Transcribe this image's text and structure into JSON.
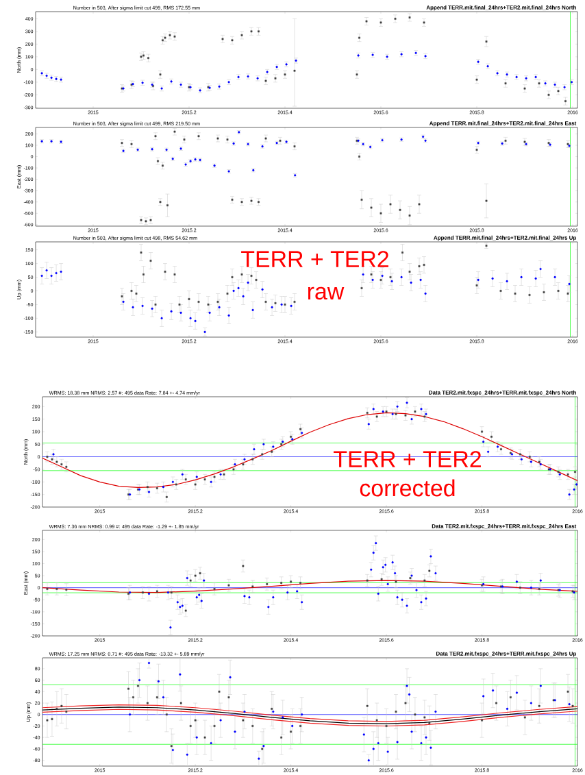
{
  "chart_data": [
    {
      "type": "scatter",
      "title": "Append TERR.mit.final_24hrs+TER2.mit.final_24hrs North",
      "subtitle": "Number in 503, After sigma limit cut 499, RMS 172.55 mm",
      "ylabel": "North (mm)",
      "xlim": [
        2014.88,
        2016.01
      ],
      "xticks": [
        2015,
        2015.2,
        2015.4,
        2015.6,
        2015.8,
        2016
      ],
      "ylim": [
        -306,
        456
      ],
      "yticks": [
        -300,
        -200,
        -100,
        0,
        100,
        200,
        300,
        400
      ],
      "ref_lines": [
        {
          "axis": "x",
          "value": 2015.995,
          "color": "#00ff00"
        }
      ],
      "series": [
        {
          "color": "#404040",
          "marker": "square",
          "x": [
            2015.06,
            2015.08,
            2015.1,
            2015.105,
            2015.115,
            2015.125,
            2015.14,
            2015.145,
            2015.15,
            2015.16,
            2015.17,
            2015.2,
            2015.24,
            2015.27,
            2015.29,
            2015.31,
            2015.33,
            2015.345,
            2015.36,
            2015.38,
            2015.4,
            2015.42,
            2015.55,
            2015.555,
            2015.57,
            2015.6,
            2015.63,
            2015.66,
            2015.69,
            2015.8,
            2015.82,
            2015.86,
            2015.9,
            2015.93,
            2015.95,
            2015.97,
            2015.985
          ],
          "values": [
            -150,
            -120,
            100,
            110,
            90,
            -130,
            -40,
            230,
            250,
            270,
            260,
            -140,
            -140,
            240,
            230,
            270,
            300,
            300,
            -90,
            -70,
            -40,
            -10,
            -40,
            250,
            380,
            370,
            400,
            410,
            370,
            -80,
            220,
            -110,
            -150,
            -110,
            -200,
            -170,
            -250
          ],
          "errors": [
            30,
            30,
            30,
            30,
            30,
            30,
            30,
            30,
            30,
            30,
            30,
            30,
            30,
            30,
            30,
            30,
            30,
            30,
            30,
            30,
            30,
            [
              -290,
              400
            ],
            30,
            30,
            30,
            30,
            30,
            30,
            30,
            30,
            40,
            30,
            30,
            30,
            30,
            30,
            30
          ]
        },
        {
          "color": "#0000ff",
          "marker": "circle",
          "x": [
            2014.893,
            2014.903,
            2014.913,
            2014.923,
            2014.933,
            2015.063,
            2015.083,
            2015.103,
            2015.123,
            2015.143,
            2015.163,
            2015.183,
            2015.203,
            2015.223,
            2015.243,
            2015.263,
            2015.283,
            2015.303,
            2015.323,
            2015.343,
            2015.363,
            2015.383,
            2015.403,
            2015.423,
            2015.553,
            2015.583,
            2015.613,
            2015.643,
            2015.673,
            2015.693,
            2015.803,
            2015.823,
            2015.843,
            2015.863,
            2015.883,
            2015.903,
            2015.923,
            2015.943,
            2015.963,
            2015.983,
            2015.998
          ],
          "values": [
            -30,
            -50,
            -65,
            -75,
            -80,
            -150,
            -115,
            -105,
            -120,
            -150,
            -95,
            -120,
            -140,
            -165,
            -145,
            -135,
            -100,
            -60,
            -55,
            -70,
            -20,
            20,
            40,
            70,
            110,
            115,
            100,
            120,
            130,
            105,
            60,
            25,
            -30,
            -40,
            -60,
            -70,
            -60,
            -110,
            -120,
            -140,
            -100
          ],
          "errors": [
            20,
            20,
            20,
            20,
            20,
            20,
            20,
            20,
            20,
            20,
            20,
            20,
            20,
            20,
            20,
            20,
            20,
            20,
            20,
            20,
            20,
            20,
            20,
            20,
            20,
            20,
            20,
            20,
            20,
            20,
            20,
            20,
            20,
            20,
            20,
            20,
            20,
            20,
            20,
            20,
            20
          ]
        }
      ]
    },
    {
      "type": "scatter",
      "title": "Append TERR.mit.final_24hrs+TER2.mit.final_24hrs East",
      "subtitle": "Number in 503, After sigma limit cut 499, RMS 219.50 mm",
      "ylabel": "East (mm)",
      "xlim": [
        2014.88,
        2016.01
      ],
      "xticks": [
        2015,
        2015.2,
        2015.4,
        2015.6,
        2015.8,
        2016
      ],
      "ylim": [
        -613,
        257
      ],
      "yticks": [
        -600,
        -500,
        -400,
        -300,
        -200,
        -100,
        0,
        100,
        200
      ],
      "ref_lines": [
        {
          "axis": "x",
          "value": 2015.995,
          "color": "#00ff00"
        }
      ],
      "series": [
        {
          "color": "#404040",
          "marker": "square",
          "x": [
            2015.06,
            2015.08,
            2015.1,
            2015.11,
            2015.12,
            2015.13,
            2015.135,
            2015.14,
            2015.145,
            2015.155,
            2015.17,
            2015.19,
            2015.22,
            2015.26,
            2015.28,
            2015.29,
            2015.31,
            2015.33,
            2015.345,
            2015.36,
            2015.39,
            2015.42,
            2015.55,
            2015.555,
            2015.56,
            2015.58,
            2015.6,
            2015.62,
            2015.64,
            2015.66,
            2015.68,
            2015.8,
            2015.82,
            2015.86,
            2015.9,
            2015.95,
            2015.99
          ],
          "values": [
            120,
            110,
            -560,
            -570,
            -560,
            180,
            -40,
            -400,
            -80,
            -430,
            220,
            150,
            180,
            160,
            150,
            -380,
            -400,
            -390,
            -400,
            160,
            140,
            90,
            140,
            0,
            -380,
            -450,
            -500,
            -420,
            -470,
            -520,
            -420,
            60,
            -390,
            140,
            130,
            120,
            110
          ],
          "errors": [
            30,
            30,
            30,
            30,
            30,
            30,
            30,
            30,
            30,
            100,
            30,
            30,
            30,
            30,
            30,
            30,
            30,
            30,
            30,
            30,
            30,
            30,
            30,
            30,
            80,
            80,
            80,
            80,
            80,
            80,
            80,
            30,
            150,
            30,
            30,
            30,
            30
          ]
        },
        {
          "color": "#0000ff",
          "marker": "circle",
          "x": [
            2014.893,
            2014.913,
            2014.933,
            2015.063,
            2015.093,
            2015.123,
            2015.153,
            2015.166,
            2015.183,
            2015.193,
            2015.203,
            2015.213,
            2015.223,
            2015.253,
            2015.283,
            2015.293,
            2015.304,
            2015.323,
            2015.334,
            2015.353,
            2015.383,
            2015.403,
            2015.421,
            2015.553,
            2015.563,
            2015.578,
            2015.603,
            2015.643,
            2015.688,
            2015.693,
            2015.803,
            2015.853,
            2015.903,
            2015.953,
            2015.993
          ],
          "values": [
            135,
            135,
            130,
            50,
            60,
            65,
            60,
            -20,
            70,
            -70,
            -40,
            -25,
            -30,
            -80,
            -130,
            115,
            215,
            110,
            -120,
            90,
            120,
            130,
            -165,
            140,
            110,
            85,
            145,
            150,
            175,
            140,
            120,
            115,
            110,
            105,
            95
          ],
          "errors": [
            15,
            15,
            15,
            15,
            15,
            15,
            15,
            15,
            15,
            15,
            15,
            15,
            15,
            15,
            15,
            15,
            15,
            15,
            15,
            15,
            15,
            15,
            15,
            15,
            15,
            15,
            15,
            15,
            15,
            15,
            15,
            15,
            15,
            15,
            15
          ]
        }
      ]
    },
    {
      "type": "scatter",
      "title": "Append TERR.mit.final_24hrs+TER2.mit.final_24hrs Up",
      "subtitle": "Number in 503, After sigma limit cut 498, RMS 54.62 mm",
      "ylabel": "Up (mm)",
      "xlim": [
        2014.88,
        2016.01
      ],
      "xticks": [
        2015,
        2015.2,
        2015.4,
        2015.6,
        2015.8,
        2016
      ],
      "ylim": [
        -169,
        179
      ],
      "yticks": [
        -150,
        -100,
        -50,
        0,
        50,
        100,
        150
      ],
      "ref_lines": [
        {
          "axis": "x",
          "value": 2015.995,
          "color": "#00ff00"
        }
      ],
      "annotations": [
        "TERR + TER2",
        "raw"
      ],
      "series": [
        {
          "color": "#404040",
          "marker": "square",
          "x": [
            2015.06,
            2015.08,
            2015.09,
            2015.1,
            2015.105,
            2015.12,
            2015.13,
            2015.15,
            2015.17,
            2015.18,
            2015.2,
            2015.22,
            2015.24,
            2015.26,
            2015.28,
            2015.29,
            2015.31,
            2015.33,
            2015.34,
            2015.36,
            2015.38,
            2015.4,
            2015.42,
            2015.56,
            2015.58,
            2015.6,
            2015.62,
            2015.645,
            2015.66,
            2015.68,
            2015.69,
            2015.8,
            2015.82,
            2015.85,
            2015.88,
            2015.91,
            2015.94,
            2015.97,
            2015.99
          ],
          "values": [
            -20,
            0,
            -10,
            140,
            60,
            110,
            -50,
            70,
            60,
            -50,
            -30,
            -40,
            -50,
            -40,
            -10,
            50,
            60,
            55,
            40,
            -40,
            -45,
            -50,
            -40,
            10,
            60,
            40,
            50,
            140,
            70,
            90,
            95,
            20,
            165,
            0,
            -10,
            -15,
            -5,
            0,
            -10
          ],
          "errors": [
            30,
            30,
            30,
            30,
            30,
            30,
            30,
            30,
            30,
            30,
            30,
            30,
            30,
            30,
            30,
            30,
            30,
            30,
            30,
            30,
            30,
            30,
            30,
            30,
            30,
            30,
            30,
            30,
            30,
            30,
            30,
            30,
            10,
            30,
            30,
            30,
            30,
            30,
            30
          ]
        },
        {
          "color": "#0000ff",
          "marker": "circle",
          "x": [
            2014.893,
            2014.903,
            2014.913,
            2014.923,
            2014.933,
            2015.063,
            2015.083,
            2015.103,
            2015.123,
            2015.143,
            2015.163,
            2015.183,
            2015.203,
            2015.213,
            2015.233,
            2015.243,
            2015.263,
            2015.283,
            2015.293,
            2015.303,
            2015.313,
            2015.323,
            2015.333,
            2015.353,
            2015.373,
            2015.393,
            2015.413,
            2015.563,
            2015.583,
            2015.603,
            2015.623,
            2015.643,
            2015.663,
            2015.683,
            2015.693,
            2015.803,
            2015.833,
            2015.863,
            2015.893,
            2015.923,
            2015.933,
            2015.963,
            2015.993
          ],
          "values": [
            55,
            75,
            55,
            65,
            70,
            -40,
            -60,
            -55,
            -65,
            -100,
            -75,
            -80,
            -100,
            -110,
            -150,
            -80,
            -60,
            -90,
            0,
            10,
            -20,
            30,
            -70,
            5,
            -60,
            -50,
            -55,
            60,
            40,
            55,
            35,
            50,
            30,
            40,
            -10,
            40,
            45,
            35,
            50,
            45,
            80,
            50,
            25
          ],
          "errors": [
            30,
            30,
            30,
            30,
            30,
            30,
            30,
            30,
            30,
            30,
            30,
            30,
            30,
            30,
            15,
            30,
            30,
            30,
            30,
            30,
            30,
            30,
            30,
            30,
            30,
            30,
            30,
            30,
            30,
            30,
            30,
            30,
            30,
            30,
            30,
            30,
            30,
            30,
            30,
            30,
            30,
            30,
            30
          ]
        }
      ]
    },
    {
      "type": "scatter",
      "title": "Data TER2.mit.fxspc_24hrs+TERR.mit.fxspc_24hrs North",
      "subtitle": "WRMS: 18.38 mm NRMS: 2.57 #: 495 data Rate: 7.84 +- 4.74 mm/yr",
      "ylabel": "North (mm)",
      "xlim": [
        2014.88,
        2016.0
      ],
      "xticks": [
        2015,
        2015.2,
        2015.4,
        2015.6,
        2015.8,
        2016
      ],
      "ylim": [
        -200,
        239
      ],
      "yticks": [
        -200,
        -150,
        -100,
        -50,
        0,
        50,
        100,
        150,
        200
      ],
      "ref_lines": [
        {
          "axis": "y",
          "value": 55,
          "color": "#00ff00"
        },
        {
          "axis": "y",
          "value": 0,
          "color": "#0000ff"
        },
        {
          "axis": "y",
          "value": -55,
          "color": "#00ff00"
        },
        {
          "axis": "x",
          "value": 2015.995,
          "color": "#00ff00"
        }
      ],
      "annotations": [
        "TERR + TER2",
        "corrected"
      ],
      "series": [
        {
          "color": "#404040",
          "marker": "square",
          "x": [
            2014.89,
            2014.9,
            2014.91,
            2014.92,
            2014.93,
            2015.06,
            2015.08,
            2015.1,
            2015.12,
            2015.14,
            2015.16,
            2015.18,
            2015.2,
            2015.22,
            2015.24,
            2015.26,
            2015.28,
            2015.3,
            2015.32,
            2015.34,
            2015.36,
            2015.38,
            2015.4,
            2015.42,
            2015.56,
            2015.58,
            2015.6,
            2015.62,
            2015.64,
            2015.66,
            2015.68,
            2015.8,
            2015.82,
            2015.84,
            2015.86,
            2015.88,
            2015.9,
            2015.92,
            2015.94,
            2015.96,
            2015.98,
            2015.995
          ],
          "values": [
            0,
            -10,
            -20,
            -30,
            -40,
            -150,
            -130,
            -120,
            -125,
            -160,
            -110,
            -90,
            -110,
            -90,
            -80,
            -70,
            -50,
            -30,
            -10,
            10,
            20,
            50,
            80,
            110,
            175,
            160,
            180,
            170,
            165,
            180,
            160,
            100,
            80,
            30,
            15,
            10,
            0,
            -20,
            -50,
            -60,
            -70,
            -60
          ],
          "errors": [
            20,
            20,
            20,
            20,
            20,
            20,
            20,
            20,
            20,
            20,
            20,
            20,
            20,
            20,
            20,
            20,
            20,
            20,
            20,
            20,
            20,
            20,
            20,
            20,
            20,
            20,
            20,
            20,
            20,
            20,
            20,
            20,
            20,
            20,
            20,
            20,
            20,
            20,
            20,
            20,
            20,
            20
          ]
        },
        {
          "color": "#0000ff",
          "marker": "circle",
          "x": [
            2014.903,
            2015.063,
            2015.083,
            2015.103,
            2015.133,
            2015.153,
            2015.173,
            2015.203,
            2015.233,
            2015.253,
            2015.283,
            2015.303,
            2015.323,
            2015.343,
            2015.363,
            2015.383,
            2015.403,
            2015.423,
            2015.563,
            2015.573,
            2015.593,
            2015.613,
            2015.623,
            2015.643,
            2015.653,
            2015.673,
            2015.683,
            2015.803,
            2015.813,
            2015.833,
            2015.863,
            2015.883,
            2015.903,
            2015.923,
            2015.943,
            2015.963,
            2015.983,
            2015.993,
            2015.998
          ],
          "values": [
            10,
            -150,
            -130,
            -140,
            -120,
            -100,
            -70,
            -80,
            -100,
            -70,
            -30,
            -10,
            30,
            50,
            40,
            60,
            70,
            95,
            130,
            190,
            180,
            170,
            200,
            215,
            150,
            190,
            170,
            60,
            20,
            40,
            10,
            -10,
            -20,
            -30,
            -50,
            -70,
            -150,
            -130,
            -110
          ],
          "errors": [
            20,
            20,
            20,
            20,
            20,
            20,
            20,
            20,
            20,
            20,
            20,
            20,
            20,
            20,
            20,
            20,
            20,
            20,
            20,
            20,
            20,
            20,
            20,
            20,
            20,
            20,
            20,
            20,
            20,
            20,
            20,
            20,
            20,
            20,
            20,
            20,
            20,
            20,
            20
          ]
        },
        {
          "type": "line",
          "color": "#dd0000",
          "x": [
            2014.88,
            2014.92,
            2014.96,
            2015.0,
            2015.04,
            2015.08,
            2015.12,
            2015.16,
            2015.2,
            2015.24,
            2015.28,
            2015.32,
            2015.36,
            2015.4,
            2015.44,
            2015.48,
            2015.52,
            2015.56,
            2015.6,
            2015.64,
            2015.68,
            2015.72,
            2015.76,
            2015.8,
            2015.84,
            2015.88,
            2015.92,
            2015.96,
            2016.0
          ],
          "values": [
            -5,
            -40,
            -75,
            -100,
            -117,
            -122,
            -120,
            -110,
            -92,
            -68,
            -40,
            -8,
            25,
            62,
            98,
            128,
            152,
            168,
            175,
            172,
            160,
            140,
            112,
            80,
            45,
            10,
            -25,
            -60,
            -95
          ]
        }
      ]
    },
    {
      "type": "scatter",
      "title": "Data TER2.mit.fxspc_24hrs+TERR.mit.fxspc_24hrs East",
      "subtitle": "WRMS: 7.36 mm NRMS: 0.99 #: 495 data Rate: -1.29 +- 1.85 mm/yr",
      "ylabel": "East (mm)",
      "xlim": [
        2014.88,
        2016.0
      ],
      "xticks": [
        2015,
        2015.2,
        2015.4,
        2015.6,
        2015.8,
        2016
      ],
      "ylim": [
        -200,
        238
      ],
      "yticks": [
        -200,
        -150,
        -100,
        -50,
        0,
        50,
        100,
        150,
        200
      ],
      "ref_lines": [
        {
          "axis": "y",
          "value": 21,
          "color": "#00ff00"
        },
        {
          "axis": "y",
          "value": 0,
          "color": "#0000ff"
        },
        {
          "axis": "y",
          "value": -21,
          "color": "#00ff00"
        },
        {
          "axis": "x",
          "value": 2015.995,
          "color": "#00ff00"
        }
      ],
      "series": [
        {
          "color": "#404040",
          "marker": "square",
          "x": [
            2014.89,
            2014.91,
            2014.93,
            2015.06,
            2015.09,
            2015.12,
            2015.15,
            2015.18,
            2015.19,
            2015.2,
            2015.21,
            2015.24,
            2015.27,
            2015.3,
            2015.32,
            2015.35,
            2015.38,
            2015.4,
            2015.42,
            2015.56,
            2015.59,
            2015.62,
            2015.65,
            2015.68,
            2015.69,
            2015.8,
            2015.84,
            2015.88,
            2015.92,
            2015.96,
            2015.99
          ],
          "values": [
            -5,
            -5,
            -8,
            -25,
            -20,
            -15,
            -20,
            -95,
            30,
            50,
            60,
            -5,
            10,
            90,
            5,
            15,
            20,
            25,
            20,
            30,
            35,
            25,
            40,
            30,
            70,
            10,
            5,
            0,
            -5,
            -10,
            -15
          ],
          "errors": [
            25,
            25,
            25,
            25,
            25,
            25,
            25,
            25,
            25,
            25,
            25,
            25,
            25,
            25,
            25,
            25,
            25,
            25,
            25,
            25,
            25,
            25,
            25,
            25,
            25,
            25,
            25,
            25,
            25,
            25,
            25
          ]
        },
        {
          "color": "#0000ff",
          "marker": "circle",
          "x": [
            2015.063,
            2015.103,
            2015.143,
            2015.148,
            2015.163,
            2015.168,
            2015.173,
            2015.183,
            2015.203,
            2015.208,
            2015.213,
            2015.218,
            2015.303,
            2015.313,
            2015.353,
            2015.363,
            2015.393,
            2015.413,
            2015.423,
            2015.568,
            2015.573,
            2015.578,
            2015.583,
            2015.593,
            2015.598,
            2015.603,
            2015.613,
            2015.618,
            2015.623,
            2015.633,
            2015.643,
            2015.653,
            2015.663,
            2015.673,
            2015.683,
            2015.693,
            2015.703,
            2015.803,
            2015.843,
            2015.873,
            2015.903,
            2015.923,
            2015.963,
            2015.993
          ],
          "values": [
            -20,
            -25,
            -20,
            -165,
            -60,
            -80,
            -75,
            40,
            -40,
            -30,
            -55,
            30,
            -35,
            -40,
            -80,
            -40,
            -20,
            -15,
            -60,
            75,
            145,
            185,
            -25,
            85,
            95,
            15,
            105,
            60,
            -40,
            -50,
            -75,
            50,
            -10,
            -60,
            -45,
            130,
            60,
            15,
            5,
            25,
            0,
            30,
            -10,
            -20
          ],
          "errors": [
            30,
            30,
            30,
            30,
            30,
            30,
            30,
            30,
            30,
            30,
            30,
            30,
            30,
            30,
            30,
            30,
            30,
            30,
            30,
            30,
            30,
            30,
            30,
            30,
            30,
            30,
            30,
            30,
            30,
            30,
            30,
            30,
            30,
            30,
            30,
            30,
            30,
            30,
            30,
            30,
            30,
            30,
            30,
            30
          ]
        },
        {
          "type": "line",
          "color": "#dd0000",
          "x": [
            2014.88,
            2014.96,
            2015.04,
            2015.12,
            2015.2,
            2015.28,
            2015.36,
            2015.44,
            2015.52,
            2015.6,
            2015.68,
            2015.76,
            2015.84,
            2015.92,
            2016.0
          ],
          "values": [
            0,
            -10,
            -18,
            -20,
            -14,
            -5,
            6,
            18,
            27,
            30,
            27,
            18,
            6,
            -6,
            -15
          ]
        }
      ]
    },
    {
      "type": "scatter",
      "title": "Data TER2.mit.fxspc_24hrs+TERR.mit.fxspc_24hrs Up",
      "subtitle": "WRMS: 17.25 mm NRMS: 0.71 #: 495 data Rate: -13.32 +- 5.89 mm/yr",
      "ylabel": "Up (mm)",
      "xlim": [
        2014.88,
        2016.0
      ],
      "xticks": [
        2015,
        2015.2,
        2015.4,
        2015.6,
        2015.8,
        2016
      ],
      "ylim": [
        -90,
        99
      ],
      "yticks": [
        -80,
        -60,
        -40,
        -20,
        0,
        20,
        40,
        60,
        80
      ],
      "ref_lines": [
        {
          "axis": "y",
          "value": 52,
          "color": "#00ff00"
        },
        {
          "axis": "y",
          "value": 0,
          "color": "#0000ff"
        },
        {
          "axis": "y",
          "value": -52,
          "color": "#00ff00"
        },
        {
          "axis": "x",
          "value": 2015.995,
          "color": "#00ff00"
        }
      ],
      "series": [
        {
          "color": "#404040",
          "marker": "square",
          "x": [
            2014.89,
            2014.9,
            2014.91,
            2014.92,
            2014.93,
            2015.06,
            2015.07,
            2015.08,
            2015.1,
            2015.12,
            2015.14,
            2015.15,
            2015.17,
            2015.19,
            2015.2,
            2015.22,
            2015.24,
            2015.25,
            2015.27,
            2015.3,
            2015.32,
            2015.34,
            2015.36,
            2015.38,
            2015.4,
            2015.42,
            2015.56,
            2015.58,
            2015.6,
            2015.62,
            2015.64,
            2015.66,
            2015.68,
            2015.69,
            2015.8,
            2015.83,
            2015.86,
            2015.89,
            2015.92,
            2015.95,
            2015.98,
            2015.99
          ],
          "values": [
            -10,
            -8,
            10,
            15,
            5,
            45,
            30,
            50,
            20,
            30,
            0,
            -55,
            20,
            -20,
            -10,
            -40,
            -20,
            40,
            30,
            -10,
            -20,
            -60,
            10,
            -40,
            -30,
            -20,
            15,
            -10,
            -20,
            5,
            20,
            0,
            -5,
            -15,
            -10,
            20,
            30,
            -5,
            15,
            25,
            40,
            15
          ],
          "errors": [
            30,
            30,
            30,
            30,
            30,
            30,
            30,
            30,
            30,
            30,
            30,
            30,
            30,
            30,
            30,
            30,
            30,
            30,
            30,
            30,
            30,
            30,
            30,
            30,
            30,
            30,
            30,
            30,
            30,
            30,
            30,
            30,
            30,
            30,
            30,
            30,
            30,
            30,
            30,
            30,
            30,
            30
          ]
        },
        {
          "color": "#0000ff",
          "marker": "circle",
          "x": [
            2015.063,
            2015.083,
            2015.103,
            2015.123,
            2015.133,
            2015.153,
            2015.168,
            2015.183,
            2015.203,
            2015.233,
            2015.253,
            2015.273,
            2015.283,
            2015.303,
            2015.333,
            2015.343,
            2015.363,
            2015.383,
            2015.403,
            2015.423,
            2015.553,
            2015.563,
            2015.573,
            2015.583,
            2015.603,
            2015.623,
            2015.643,
            2015.648,
            2015.653,
            2015.673,
            2015.683,
            2015.693,
            2015.703,
            2015.803,
            2015.823,
            2015.853,
            2015.873,
            2015.903,
            2015.923,
            2015.953,
            2015.983
          ],
          "values": [
            0,
            60,
            90,
            58,
            30,
            -62,
            70,
            -70,
            -40,
            -50,
            -10,
            65,
            -30,
            5,
            -77,
            -55,
            5,
            -5,
            -20,
            0,
            -35,
            -80,
            -60,
            -50,
            -65,
            -48,
            50,
            35,
            -30,
            -50,
            -40,
            -58,
            5,
            32,
            42,
            10,
            38,
            20,
            50,
            25,
            18
          ],
          "errors": [
            30,
            30,
            9,
            30,
            30,
            28,
            29,
            20,
            30,
            30,
            30,
            30,
            30,
            30,
            13,
            30,
            30,
            30,
            30,
            30,
            30,
            10,
            30,
            30,
            25,
            30,
            30,
            30,
            30,
            30,
            30,
            30,
            30,
            30,
            30,
            30,
            30,
            30,
            30,
            30,
            30
          ]
        },
        {
          "type": "line",
          "color": "#000000",
          "x": [
            2014.88,
            2014.96,
            2015.04,
            2015.12,
            2015.2,
            2015.28,
            2015.36,
            2015.44,
            2015.52,
            2015.6,
            2015.68,
            2015.76,
            2015.84,
            2015.92,
            2016.0
          ],
          "values": [
            8,
            11,
            13,
            12,
            8,
            2,
            -5,
            -11,
            -15,
            -16,
            -14,
            -8,
            -1,
            5,
            10
          ]
        },
        {
          "type": "line",
          "color": "#ee2222",
          "x": [
            2014.88,
            2014.96,
            2015.04,
            2015.12,
            2015.2,
            2015.28,
            2015.36,
            2015.44,
            2015.52,
            2015.6,
            2015.68,
            2015.76,
            2015.84,
            2015.92,
            2016.0
          ],
          "values": [
            12,
            15,
            17,
            16,
            12,
            6,
            -1,
            -7,
            -11,
            -12,
            -10,
            -4,
            3,
            9,
            14
          ]
        },
        {
          "type": "line",
          "color": "#ee2222",
          "x": [
            2014.88,
            2014.96,
            2015.04,
            2015.12,
            2015.2,
            2015.28,
            2015.36,
            2015.44,
            2015.52,
            2015.6,
            2015.68,
            2015.76,
            2015.84,
            2015.92,
            2016.0
          ],
          "values": [
            4,
            7,
            9,
            8,
            4,
            -2,
            -9,
            -15,
            -19,
            -20,
            -18,
            -12,
            -5,
            1,
            6
          ]
        }
      ]
    }
  ]
}
